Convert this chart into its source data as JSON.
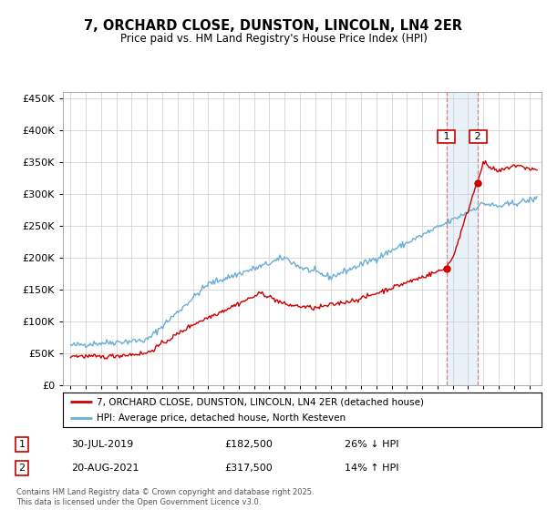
{
  "title": "7, ORCHARD CLOSE, DUNSTON, LINCOLN, LN4 2ER",
  "subtitle": "Price paid vs. HM Land Registry's House Price Index (HPI)",
  "legend_line1": "7, ORCHARD CLOSE, DUNSTON, LINCOLN, LN4 2ER (detached house)",
  "legend_line2": "HPI: Average price, detached house, North Kesteven",
  "transaction1_date": "30-JUL-2019",
  "transaction1_price": "£182,500",
  "transaction1_hpi": "26% ↓ HPI",
  "transaction2_date": "20-AUG-2021",
  "transaction2_price": "£317,500",
  "transaction2_hpi": "14% ↑ HPI",
  "footer": "Contains HM Land Registry data © Crown copyright and database right 2025.\nThis data is licensed under the Open Government Licence v3.0.",
  "hpi_color": "#6baed6",
  "price_color": "#cc0000",
  "marker1_x": 2019.58,
  "marker1_y": 182500,
  "marker2_x": 2021.64,
  "marker2_y": 317500,
  "ylim": [
    0,
    460000
  ],
  "xlim_start": 1994.5,
  "xlim_end": 2025.8
}
